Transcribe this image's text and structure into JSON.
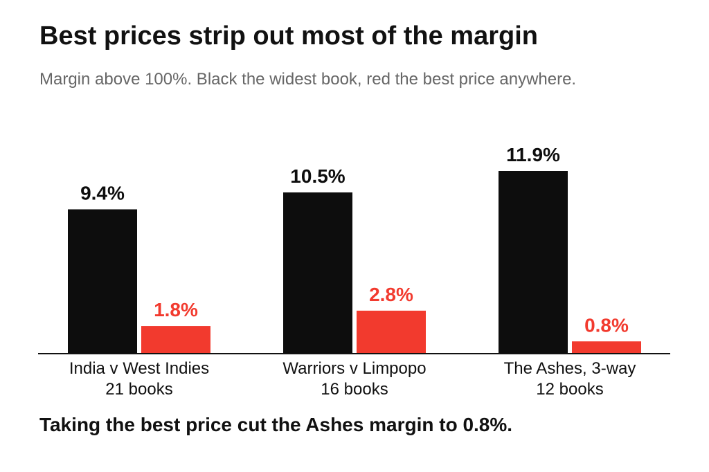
{
  "title": "Best prices strip out most of the margin",
  "subtitle": "Margin above 100%. Black the widest book, red the best price anywhere.",
  "footnote": "Taking the best price cut the Ashes margin to 0.8%.",
  "chart_data": {
    "type": "bar",
    "categories": [
      "India v West Indies",
      "Warriors v Limpopo",
      "The Ashes, 3-way"
    ],
    "category_sublabels": [
      "21 books",
      "16 books",
      "12 books"
    ],
    "series": [
      {
        "values": [
          9.4,
          10.5,
          11.9
        ],
        "labels": [
          "9.4%",
          "10.5%",
          "11.9%"
        ],
        "color": "#0d0d0d"
      },
      {
        "values": [
          1.8,
          2.8,
          0.8
        ],
        "labels": [
          "1.8%",
          "2.8%",
          "0.8%"
        ],
        "color": "#f23a2e"
      }
    ],
    "ylim": [
      0,
      11.9
    ],
    "grid": false,
    "legend": "none"
  }
}
